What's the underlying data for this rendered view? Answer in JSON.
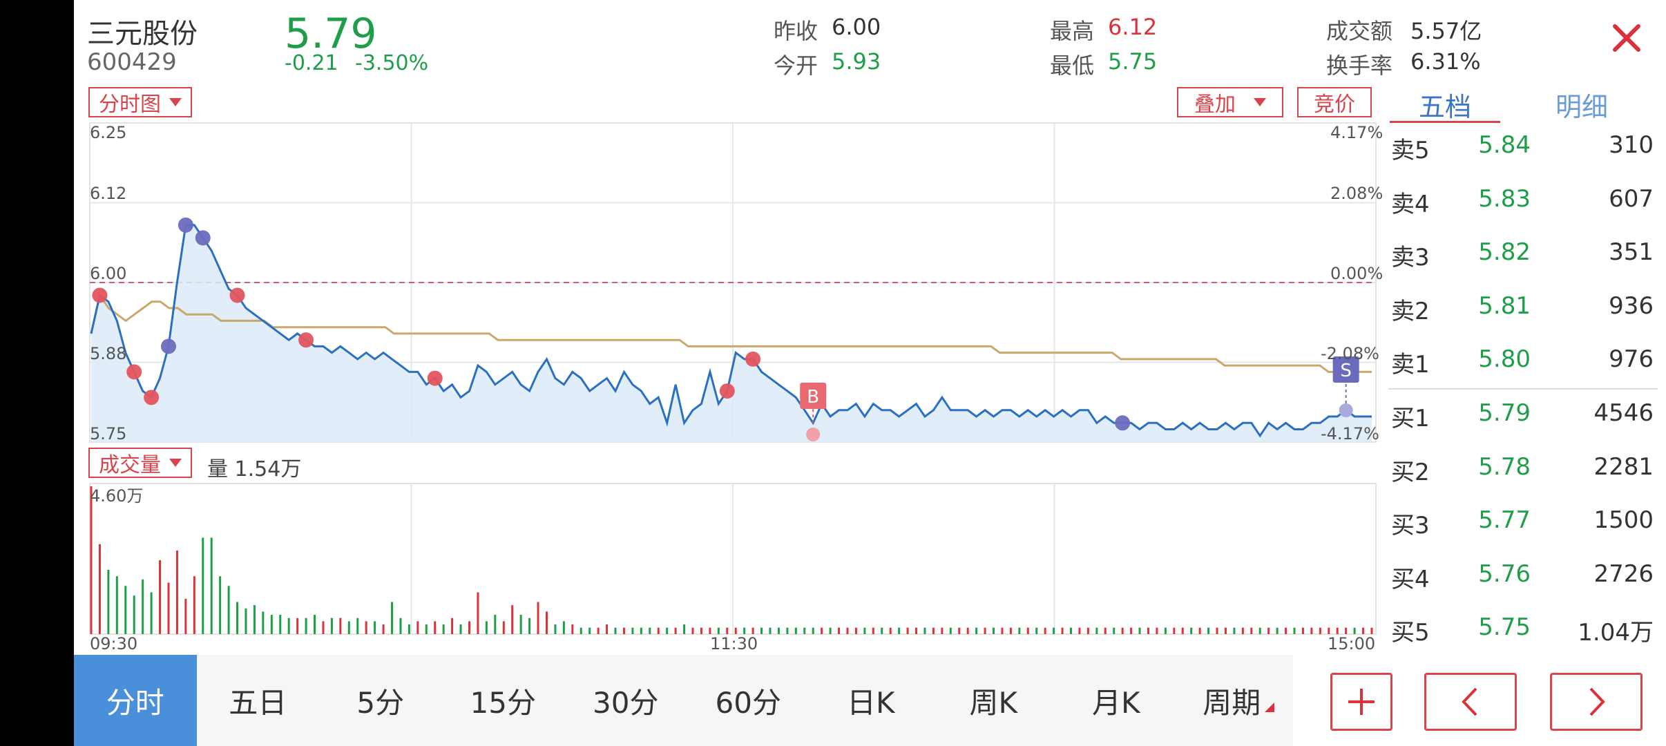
{
  "stock": {
    "name": "三元股份",
    "code": "600429",
    "price": "5.79",
    "change": "-0.21",
    "change_pct": "-3.50%"
  },
  "stats": {
    "prev_close_label": "昨收",
    "prev_close": "6.00",
    "open_label": "今开",
    "open": "5.93",
    "high_label": "最高",
    "high": "6.12",
    "low_label": "最低",
    "low": "5.75",
    "amount_label": "成交额",
    "amount": "5.57亿",
    "turnover_label": "换手率",
    "turnover": "6.31%"
  },
  "controls": {
    "chart_mode": "分时图",
    "overlay": "叠加",
    "auction": "竞价",
    "volume_mode": "成交量",
    "volume_text": "量 1.54万"
  },
  "orderbook": {
    "tabs": [
      "五档",
      "明细"
    ],
    "asks": [
      {
        "label": "卖5",
        "price": "5.84",
        "vol": "310"
      },
      {
        "label": "卖4",
        "price": "5.83",
        "vol": "607"
      },
      {
        "label": "卖3",
        "price": "5.82",
        "vol": "351"
      },
      {
        "label": "卖2",
        "price": "5.81",
        "vol": "936"
      },
      {
        "label": "卖1",
        "price": "5.80",
        "vol": "976"
      }
    ],
    "bids": [
      {
        "label": "买1",
        "price": "5.79",
        "vol": "4546"
      },
      {
        "label": "买2",
        "price": "5.78",
        "vol": "2281"
      },
      {
        "label": "买3",
        "price": "5.77",
        "vol": "1500"
      },
      {
        "label": "买4",
        "price": "5.76",
        "vol": "2726"
      },
      {
        "label": "买5",
        "price": "5.75",
        "vol": "1.04万"
      }
    ]
  },
  "period_tabs": [
    "分时",
    "五日",
    "5分",
    "15分",
    "30分",
    "60分",
    "日K",
    "周K",
    "月K",
    "周期"
  ],
  "colors": {
    "up": "#d9323a",
    "down": "#1f9e4a",
    "price_line": "#2a6fc0",
    "avg_line": "#c9a86a",
    "fill": "#dceaf8",
    "active_tab": "#4a8fd9"
  },
  "icons": {
    "close": "close-icon",
    "add": "plus-icon",
    "prev": "chevron-left-icon",
    "next": "chevron-right-icon"
  },
  "chart_data": {
    "type": "line",
    "price_axis": [
      "6.25",
      "6.12",
      "6.00",
      "5.88",
      "5.75"
    ],
    "pct_axis": [
      "4.17%",
      "2.08%",
      "0.00%",
      "-2.08%",
      "-4.17%"
    ],
    "time_axis": [
      "09:30",
      "11:30",
      "15:00"
    ],
    "volume_max_label": "4.60万",
    "ylim": [
      5.75,
      6.25
    ],
    "prev_close": 6.0,
    "markers": [
      {
        "type": "B",
        "label": "B"
      },
      {
        "type": "S",
        "label": "S"
      }
    ],
    "price_series": [
      5.92,
      5.98,
      5.97,
      5.94,
      5.89,
      5.86,
      5.83,
      5.82,
      5.85,
      5.9,
      6.0,
      6.09,
      6.09,
      6.07,
      6.05,
      6.02,
      5.99,
      5.98,
      5.96,
      5.95,
      5.94,
      5.93,
      5.92,
      5.91,
      5.92,
      5.91,
      5.9,
      5.9,
      5.89,
      5.9,
      5.89,
      5.88,
      5.89,
      5.88,
      5.89,
      5.88,
      5.87,
      5.86,
      5.86,
      5.84,
      5.85,
      5.83,
      5.84,
      5.82,
      5.83,
      5.87,
      5.86,
      5.84,
      5.85,
      5.86,
      5.84,
      5.83,
      5.86,
      5.88,
      5.85,
      5.84,
      5.86,
      5.85,
      5.83,
      5.84,
      5.85,
      5.83,
      5.86,
      5.84,
      5.83,
      5.81,
      5.82,
      5.78,
      5.84,
      5.78,
      5.8,
      5.81,
      5.86,
      5.81,
      5.83,
      5.89,
      5.88,
      5.88,
      5.86,
      5.85,
      5.84,
      5.83,
      5.82,
      5.8,
      5.78,
      5.81,
      5.79,
      5.8,
      5.8,
      5.81,
      5.79,
      5.81,
      5.8,
      5.8,
      5.79,
      5.8,
      5.81,
      5.79,
      5.8,
      5.82,
      5.8,
      5.8,
      5.8,
      5.79,
      5.8,
      5.79,
      5.8,
      5.8,
      5.79,
      5.8,
      5.79,
      5.8,
      5.79,
      5.8,
      5.79,
      5.8,
      5.8,
      5.78,
      5.79,
      5.78,
      5.78,
      5.78,
      5.77,
      5.78,
      5.78,
      5.77,
      5.77,
      5.78,
      5.77,
      5.78,
      5.77,
      5.77,
      5.78,
      5.77,
      5.78,
      5.78,
      5.76,
      5.78,
      5.77,
      5.78,
      5.77,
      5.77,
      5.78,
      5.78,
      5.79,
      5.79,
      5.8,
      5.79,
      5.79,
      5.79
    ],
    "avg_series": [
      5.92,
      5.98,
      5.96,
      5.95,
      5.94,
      5.95,
      5.96,
      5.97,
      5.97,
      5.96,
      5.96,
      5.95,
      5.95,
      5.95,
      5.95,
      5.94,
      5.94,
      5.94,
      5.94,
      5.94,
      5.94,
      5.93,
      5.93,
      5.93,
      5.93,
      5.93,
      5.93,
      5.93,
      5.93,
      5.93,
      5.93,
      5.93,
      5.93,
      5.93,
      5.93,
      5.92,
      5.92,
      5.92,
      5.92,
      5.92,
      5.92,
      5.92,
      5.92,
      5.92,
      5.92,
      5.92,
      5.92,
      5.91,
      5.91,
      5.91,
      5.91,
      5.91,
      5.91,
      5.91,
      5.91,
      5.91,
      5.91,
      5.91,
      5.91,
      5.91,
      5.91,
      5.91,
      5.91,
      5.91,
      5.91,
      5.91,
      5.91,
      5.91,
      5.91,
      5.9,
      5.9,
      5.9,
      5.9,
      5.9,
      5.9,
      5.9,
      5.9,
      5.9,
      5.9,
      5.9,
      5.9,
      5.9,
      5.9,
      5.9,
      5.9,
      5.9,
      5.9,
      5.9,
      5.9,
      5.9,
      5.9,
      5.9,
      5.9,
      5.9,
      5.9,
      5.9,
      5.9,
      5.9,
      5.9,
      5.9,
      5.9,
      5.9,
      5.9,
      5.9,
      5.9,
      5.89,
      5.89,
      5.89,
      5.89,
      5.89,
      5.89,
      5.89,
      5.89,
      5.89,
      5.89,
      5.89,
      5.89,
      5.89,
      5.89,
      5.88,
      5.88,
      5.88,
      5.88,
      5.88,
      5.88,
      5.88,
      5.88,
      5.88,
      5.88,
      5.88,
      5.88,
      5.87,
      5.87,
      5.87,
      5.87,
      5.87,
      5.87,
      5.87,
      5.87,
      5.87,
      5.87,
      5.87,
      5.87,
      5.86,
      5.86,
      5.86,
      5.86,
      5.86,
      5.86
    ],
    "volume_series": [
      4.6,
      2.8,
      2.0,
      1.8,
      1.5,
      1.2,
      1.7,
      1.3,
      2.3,
      1.6,
      2.6,
      1.1,
      1.8,
      3.0,
      3.0,
      1.8,
      1.5,
      1.0,
      0.8,
      0.9,
      0.7,
      0.6,
      0.6,
      0.5,
      0.5,
      0.5,
      0.6,
      0.4,
      0.5,
      0.5,
      0.4,
      0.5,
      0.4,
      0.4,
      0.3,
      1.0,
      0.5,
      0.3,
      0.4,
      0.3,
      0.4,
      0.3,
      0.5,
      0.3,
      0.4,
      1.3,
      0.4,
      0.6,
      0.4,
      0.9,
      0.6,
      0.5,
      1.0,
      0.7,
      0.3,
      0.4,
      0.3,
      0.2,
      0.2,
      0.2,
      0.3,
      0.2,
      0.2,
      0.2,
      0.2,
      0.2,
      0.2,
      0.2,
      0.2,
      0.3,
      0.2,
      0.2,
      0.2,
      0.2,
      0.2,
      0.2,
      0.2,
      0.2,
      0.2,
      0.2,
      0.2,
      0.2,
      0.2,
      0.2,
      0.2,
      0.2,
      0.2,
      0.2,
      0.2,
      0.2,
      0.2,
      0.2,
      0.2,
      0.2,
      0.2,
      0.2,
      0.2,
      0.2,
      0.2,
      0.2,
      0.2,
      0.2,
      0.2,
      0.2,
      0.2,
      0.2,
      0.2,
      0.2,
      0.2,
      0.2,
      0.2,
      0.2,
      0.2,
      0.2,
      0.2,
      0.2,
      0.2,
      0.2,
      0.2,
      0.2,
      0.2,
      0.2,
      0.2,
      0.2,
      0.2,
      0.2,
      0.2,
      0.2,
      0.2,
      0.2,
      0.2,
      0.2,
      0.2,
      0.2,
      0.2,
      0.2,
      0.2,
      0.2,
      0.2,
      0.2,
      0.2,
      0.2,
      0.2,
      0.2,
      0.2,
      0.2,
      0.2,
      0.2,
      0.2,
      0.2
    ]
  }
}
